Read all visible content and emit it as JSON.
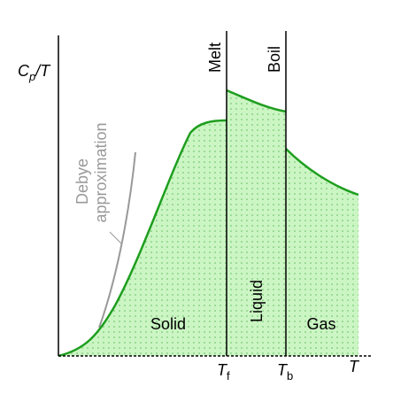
{
  "axes": {
    "y_label": {
      "main": "C",
      "sub": "p",
      "rest": "/T"
    },
    "x_label": "T"
  },
  "transitions": [
    {
      "label": "Melt",
      "symbol": "T",
      "sub": "f"
    },
    {
      "label": "Boil",
      "symbol": "T",
      "sub": "b"
    }
  ],
  "regions": [
    {
      "label": "Solid"
    },
    {
      "label": "Liquid"
    },
    {
      "label": "Gas"
    }
  ],
  "annotation": [
    "Debye",
    "approximation"
  ]
}
